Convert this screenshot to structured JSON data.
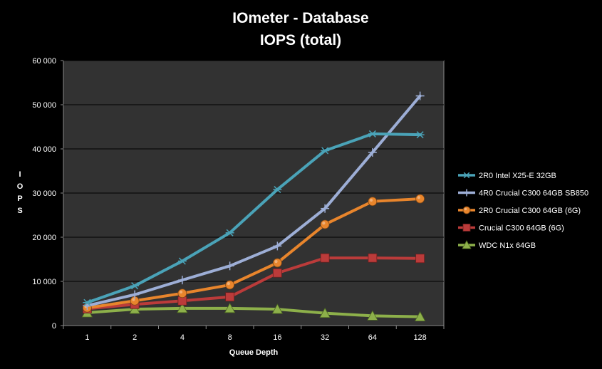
{
  "chart_data": {
    "type": "line",
    "title": "IOmeter - Database",
    "subtitle": "IOPS (total)",
    "xlabel": "Queue Depth",
    "ylabel": "I O P S",
    "categories": [
      "1",
      "2",
      "4",
      "8",
      "16",
      "32",
      "64",
      "128"
    ],
    "ylim": [
      0,
      60000
    ],
    "yticks": [
      0,
      10000,
      20000,
      30000,
      40000,
      50000,
      60000
    ],
    "ytick_labels": [
      "0",
      "10 000",
      "20 000",
      "30 000",
      "40 000",
      "50 000",
      "60 000"
    ],
    "grid": "horizontal",
    "legend": "right",
    "plot_background": "#323232",
    "series": [
      {
        "name": "2R0 Intel X25-E 32GB",
        "color": "#4aa3b8",
        "marker": "asterisk",
        "values": [
          5200,
          9000,
          14600,
          21000,
          30800,
          39600,
          43400,
          43200
        ]
      },
      {
        "name": "4R0 Crucial C300 64GB SB850",
        "color": "#9daed6",
        "marker": "plus",
        "values": [
          4500,
          7000,
          10300,
          13500,
          18000,
          26500,
          39200,
          52000
        ]
      },
      {
        "name": "2R0 Crucial C300 64GB (6G)",
        "color": "#e8852c",
        "marker": "circle",
        "values": [
          4000,
          5600,
          7300,
          9200,
          14200,
          22900,
          28100,
          28700
        ]
      },
      {
        "name": "Crucial C300 64GB (6G)",
        "color": "#bb3b3a",
        "marker": "square",
        "values": [
          3800,
          4800,
          5600,
          6500,
          11900,
          15300,
          15300,
          15200
        ]
      },
      {
        "name": "WDC N1x 64GB",
        "color": "#8db04a",
        "marker": "triangle",
        "values": [
          2900,
          3700,
          3900,
          3900,
          3700,
          2800,
          2200,
          2000
        ]
      }
    ]
  }
}
